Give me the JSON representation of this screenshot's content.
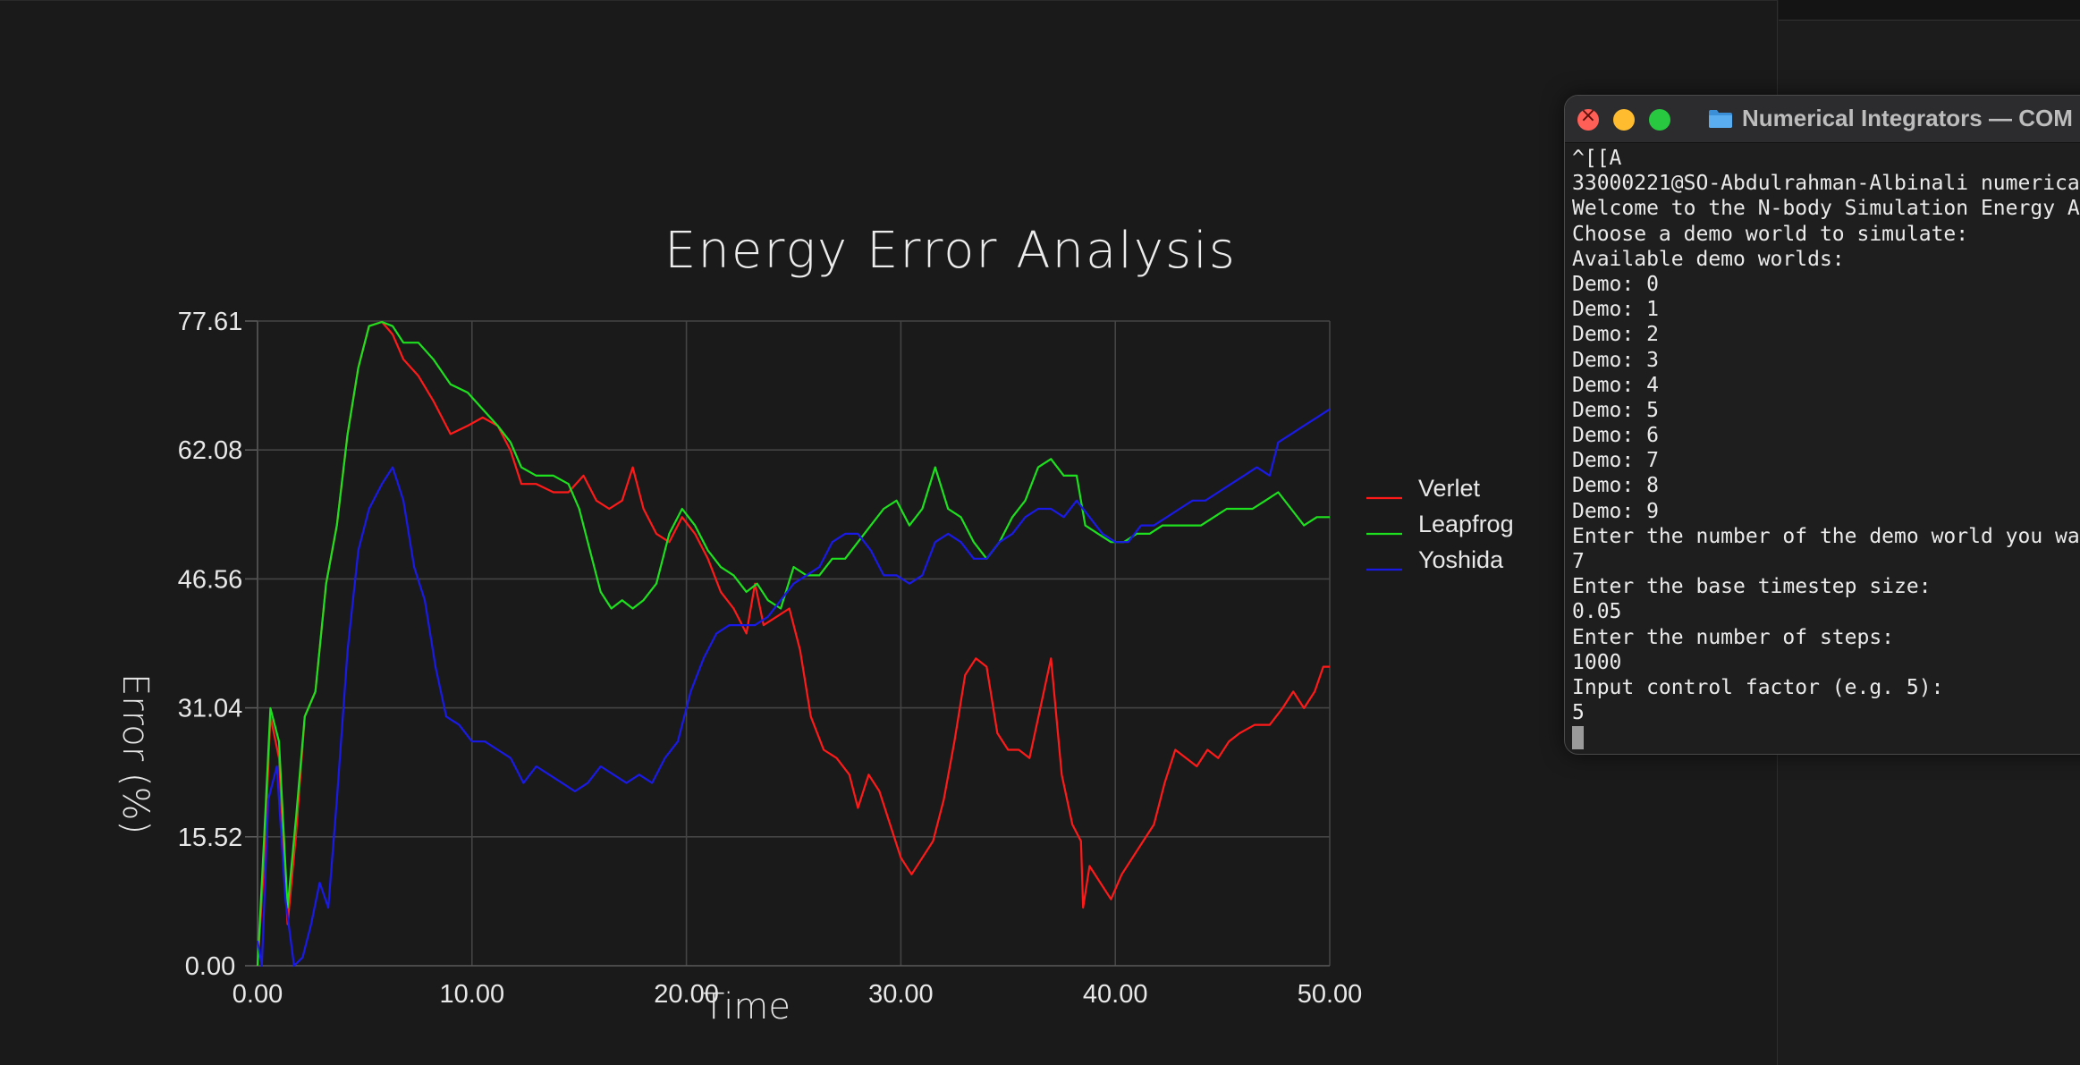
{
  "plot_window": {
    "chart_data": {
      "type": "line",
      "title": "Energy Error Analysis",
      "xlabel": "Time",
      "ylabel": "Error (%)",
      "xlim": [
        0,
        50
      ],
      "ylim": [
        0,
        77.61
      ],
      "x_ticks": [
        "0.00",
        "10.00",
        "20.00",
        "30.00",
        "40.00",
        "50.00"
      ],
      "y_ticks": [
        "0.00",
        "15.52",
        "31.04",
        "46.56",
        "62.08",
        "77.61"
      ],
      "grid": true,
      "legend_position": "right",
      "series": [
        {
          "name": "Verlet",
          "color": "#ff1a1a",
          "points": [
            [
              0,
              0
            ],
            [
              0.3,
              12
            ],
            [
              0.6,
              30
            ],
            [
              1.0,
              25
            ],
            [
              1.4,
              5
            ],
            [
              1.8,
              16
            ],
            [
              2.2,
              30
            ],
            [
              2.7,
              33
            ],
            [
              3.2,
              46
            ],
            [
              3.7,
              53
            ],
            [
              4.2,
              64
            ],
            [
              4.7,
              72
            ],
            [
              5.2,
              77
            ],
            [
              5.8,
              77.5
            ],
            [
              6.3,
              76
            ],
            [
              6.8,
              73
            ],
            [
              7.5,
              71
            ],
            [
              8.2,
              68
            ],
            [
              9.0,
              64
            ],
            [
              9.8,
              65
            ],
            [
              10.5,
              66
            ],
            [
              11.2,
              65
            ],
            [
              11.8,
              62
            ],
            [
              12.3,
              58
            ],
            [
              13.0,
              58
            ],
            [
              13.8,
              57
            ],
            [
              14.5,
              57
            ],
            [
              15.2,
              59
            ],
            [
              15.8,
              56
            ],
            [
              16.4,
              55
            ],
            [
              17.0,
              56
            ],
            [
              17.5,
              60
            ],
            [
              18.0,
              55
            ],
            [
              18.6,
              52
            ],
            [
              19.2,
              51
            ],
            [
              19.8,
              54
            ],
            [
              20.4,
              52
            ],
            [
              21.0,
              49
            ],
            [
              21.6,
              45
            ],
            [
              22.2,
              43
            ],
            [
              22.8,
              40
            ],
            [
              23.2,
              46
            ],
            [
              23.6,
              41
            ],
            [
              24.2,
              42
            ],
            [
              24.8,
              43
            ],
            [
              25.3,
              38
            ],
            [
              25.8,
              30
            ],
            [
              26.4,
              26
            ],
            [
              27.0,
              25
            ],
            [
              27.6,
              23
            ],
            [
              28.0,
              19
            ],
            [
              28.5,
              23
            ],
            [
              29.0,
              21
            ],
            [
              29.5,
              17
            ],
            [
              30.0,
              13
            ],
            [
              30.5,
              11
            ],
            [
              31.0,
              13
            ],
            [
              31.5,
              15
            ],
            [
              32.0,
              20
            ],
            [
              32.5,
              27
            ],
            [
              33.0,
              35
            ],
            [
              33.5,
              37
            ],
            [
              34.0,
              36
            ],
            [
              34.5,
              28
            ],
            [
              35.0,
              26
            ],
            [
              35.5,
              26
            ],
            [
              36.0,
              25
            ],
            [
              36.5,
              31
            ],
            [
              37.0,
              37
            ],
            [
              37.5,
              23
            ],
            [
              38.0,
              17
            ],
            [
              38.4,
              15
            ],
            [
              38.5,
              7
            ],
            [
              38.8,
              12
            ],
            [
              39.3,
              10
            ],
            [
              39.8,
              8
            ],
            [
              40.3,
              11
            ],
            [
              40.8,
              13
            ],
            [
              41.3,
              15
            ],
            [
              41.8,
              17
            ],
            [
              42.3,
              22
            ],
            [
              42.8,
              26
            ],
            [
              43.3,
              25
            ],
            [
              43.8,
              24
            ],
            [
              44.3,
              26
            ],
            [
              44.8,
              25
            ],
            [
              45.3,
              27
            ],
            [
              45.8,
              28
            ],
            [
              46.5,
              29
            ],
            [
              47.2,
              29
            ],
            [
              47.8,
              31
            ],
            [
              48.3,
              33
            ],
            [
              48.8,
              31
            ],
            [
              49.3,
              33
            ],
            [
              49.7,
              36
            ],
            [
              50,
              36
            ]
          ]
        },
        {
          "name": "Leapfrog",
          "color": "#1fe01f",
          "points": [
            [
              0,
              0
            ],
            [
              0.3,
              15
            ],
            [
              0.6,
              31
            ],
            [
              1.0,
              27
            ],
            [
              1.4,
              7
            ],
            [
              1.8,
              18
            ],
            [
              2.2,
              30
            ],
            [
              2.7,
              33
            ],
            [
              3.2,
              46
            ],
            [
              3.7,
              53
            ],
            [
              4.2,
              64
            ],
            [
              4.7,
              72
            ],
            [
              5.2,
              77
            ],
            [
              5.8,
              77.5
            ],
            [
              6.3,
              77
            ],
            [
              6.8,
              75
            ],
            [
              7.5,
              75
            ],
            [
              8.2,
              73
            ],
            [
              9.0,
              70
            ],
            [
              9.8,
              69
            ],
            [
              10.5,
              67
            ],
            [
              11.2,
              65
            ],
            [
              11.8,
              63
            ],
            [
              12.3,
              60
            ],
            [
              13.0,
              59
            ],
            [
              13.8,
              59
            ],
            [
              14.5,
              58
            ],
            [
              15.0,
              55
            ],
            [
              15.5,
              50
            ],
            [
              16.0,
              45
            ],
            [
              16.5,
              43
            ],
            [
              17.0,
              44
            ],
            [
              17.5,
              43
            ],
            [
              18.0,
              44
            ],
            [
              18.6,
              46
            ],
            [
              19.2,
              52
            ],
            [
              19.8,
              55
            ],
            [
              20.4,
              53
            ],
            [
              21.0,
              50
            ],
            [
              21.6,
              48
            ],
            [
              22.2,
              47
            ],
            [
              22.8,
              45
            ],
            [
              23.3,
              46
            ],
            [
              23.8,
              44
            ],
            [
              24.4,
              43
            ],
            [
              25.0,
              48
            ],
            [
              25.6,
              47
            ],
            [
              26.2,
              47
            ],
            [
              26.8,
              49
            ],
            [
              27.4,
              49
            ],
            [
              28.0,
              51
            ],
            [
              28.6,
              53
            ],
            [
              29.2,
              55
            ],
            [
              29.8,
              56
            ],
            [
              30.4,
              53
            ],
            [
              31.0,
              55
            ],
            [
              31.6,
              60
            ],
            [
              32.2,
              55
            ],
            [
              32.8,
              54
            ],
            [
              33.4,
              51
            ],
            [
              34.0,
              49
            ],
            [
              34.6,
              51
            ],
            [
              35.2,
              54
            ],
            [
              35.8,
              56
            ],
            [
              36.4,
              60
            ],
            [
              37.0,
              61
            ],
            [
              37.6,
              59
            ],
            [
              38.2,
              59
            ],
            [
              38.6,
              53
            ],
            [
              39.2,
              52
            ],
            [
              39.8,
              51
            ],
            [
              40.4,
              51
            ],
            [
              41.0,
              52
            ],
            [
              41.6,
              52
            ],
            [
              42.2,
              53
            ],
            [
              42.8,
              53
            ],
            [
              43.4,
              53
            ],
            [
              44.0,
              53
            ],
            [
              44.6,
              54
            ],
            [
              45.2,
              55
            ],
            [
              45.8,
              55
            ],
            [
              46.4,
              55
            ],
            [
              47.0,
              56
            ],
            [
              47.6,
              57
            ],
            [
              48.2,
              55
            ],
            [
              48.8,
              53
            ],
            [
              49.4,
              54
            ],
            [
              50,
              54
            ]
          ]
        },
        {
          "name": "Yoshida",
          "color": "#1a1ae6",
          "points": [
            [
              0,
              3
            ],
            [
              0.2,
              0
            ],
            [
              0.5,
              20
            ],
            [
              0.9,
              24
            ],
            [
              1.3,
              8
            ],
            [
              1.7,
              0
            ],
            [
              2.1,
              1
            ],
            [
              2.5,
              5
            ],
            [
              2.9,
              10
            ],
            [
              3.3,
              7
            ],
            [
              3.7,
              20
            ],
            [
              4.2,
              38
            ],
            [
              4.7,
              50
            ],
            [
              5.2,
              55
            ],
            [
              5.8,
              58
            ],
            [
              6.3,
              60
            ],
            [
              6.8,
              56
            ],
            [
              7.3,
              48
            ],
            [
              7.8,
              44
            ],
            [
              8.3,
              36
            ],
            [
              8.8,
              30
            ],
            [
              9.4,
              29
            ],
            [
              10.0,
              27
            ],
            [
              10.6,
              27
            ],
            [
              11.2,
              26
            ],
            [
              11.8,
              25
            ],
            [
              12.4,
              22
            ],
            [
              13.0,
              24
            ],
            [
              13.6,
              23
            ],
            [
              14.2,
              22
            ],
            [
              14.8,
              21
            ],
            [
              15.4,
              22
            ],
            [
              16.0,
              24
            ],
            [
              16.6,
              23
            ],
            [
              17.2,
              22
            ],
            [
              17.8,
              23
            ],
            [
              18.4,
              22
            ],
            [
              19.0,
              25
            ],
            [
              19.6,
              27
            ],
            [
              20.2,
              33
            ],
            [
              20.8,
              37
            ],
            [
              21.4,
              40
            ],
            [
              22.0,
              41
            ],
            [
              22.6,
              41
            ],
            [
              23.2,
              41
            ],
            [
              23.8,
              42
            ],
            [
              24.4,
              44
            ],
            [
              25.0,
              46
            ],
            [
              25.6,
              47
            ],
            [
              26.2,
              48
            ],
            [
              26.8,
              51
            ],
            [
              27.4,
              52
            ],
            [
              28.0,
              52
            ],
            [
              28.6,
              50
            ],
            [
              29.2,
              47
            ],
            [
              29.8,
              47
            ],
            [
              30.4,
              46
            ],
            [
              31.0,
              47
            ],
            [
              31.6,
              51
            ],
            [
              32.2,
              52
            ],
            [
              32.8,
              51
            ],
            [
              33.4,
              49
            ],
            [
              34.0,
              49
            ],
            [
              34.6,
              51
            ],
            [
              35.2,
              52
            ],
            [
              35.8,
              54
            ],
            [
              36.4,
              55
            ],
            [
              37.0,
              55
            ],
            [
              37.6,
              54
            ],
            [
              38.2,
              56
            ],
            [
              38.8,
              54
            ],
            [
              39.4,
              52
            ],
            [
              40.0,
              51
            ],
            [
              40.6,
              51
            ],
            [
              41.2,
              53
            ],
            [
              41.8,
              53
            ],
            [
              42.4,
              54
            ],
            [
              43.0,
              55
            ],
            [
              43.6,
              56
            ],
            [
              44.2,
              56
            ],
            [
              44.8,
              57
            ],
            [
              45.4,
              58
            ],
            [
              46.0,
              59
            ],
            [
              46.6,
              60
            ],
            [
              47.2,
              59
            ],
            [
              47.6,
              63
            ],
            [
              48.2,
              64
            ],
            [
              48.8,
              65
            ],
            [
              49.4,
              66
            ],
            [
              50,
              67
            ]
          ]
        }
      ]
    }
  },
  "terminal": {
    "window_title": "Numerical Integrators — COM",
    "lines": [
      "^[[A",
      "33000221@SO-Abdulrahman-Albinali numerica",
      "Welcome to the N-body Simulation Energy A",
      "Choose a demo world to simulate:",
      "Available demo worlds:",
      "Demo: 0",
      "Demo: 1",
      "Demo: 2",
      "Demo: 3",
      "Demo: 4",
      "Demo: 5",
      "Demo: 6",
      "Demo: 7",
      "Demo: 8",
      "Demo: 9",
      "Enter the number of the demo world you wa",
      "7",
      "Enter the base timestep size:",
      "0.05",
      "Enter the number of steps:",
      "1000",
      "Input control factor (e.g. 5):",
      "5"
    ]
  }
}
